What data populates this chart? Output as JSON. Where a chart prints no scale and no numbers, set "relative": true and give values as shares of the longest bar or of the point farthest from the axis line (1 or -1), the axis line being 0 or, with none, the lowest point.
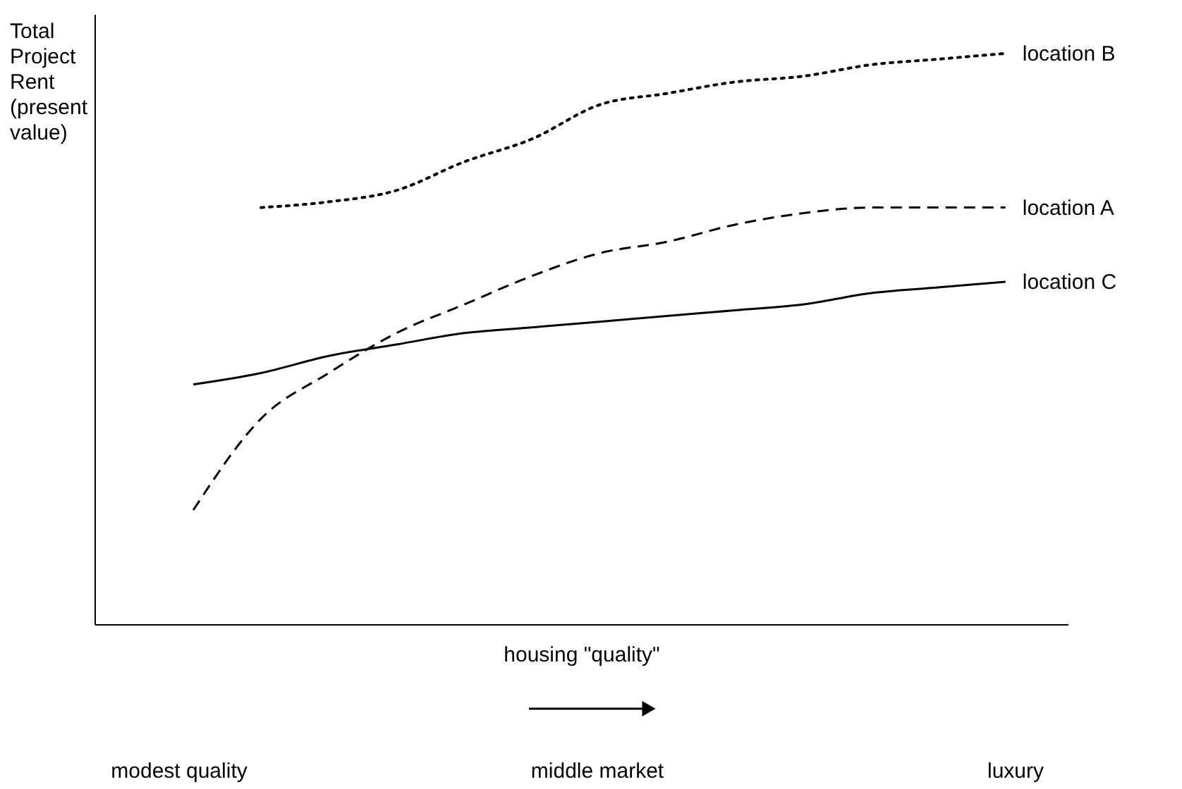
{
  "chart_data": {
    "type": "line",
    "relative": true,
    "xlabel": "housing \"quality\"",
    "ylabel": "Total Project Rent (present value)",
    "categories": [
      null,
      null,
      null,
      null,
      null,
      null,
      null,
      null,
      null,
      null,
      null,
      null,
      null
    ],
    "series": [
      {
        "name": "location B",
        "color": "#000000",
        "line_style": "dotted",
        "values": [
          null,
          0.73,
          0.74,
          0.76,
          0.81,
          0.85,
          0.91,
          0.93,
          0.95,
          0.96,
          0.98,
          0.99,
          1.0
        ]
      },
      {
        "name": "location A",
        "color": "#000000",
        "line_style": "dashed",
        "values": [
          0.2,
          0.36,
          0.44,
          0.51,
          0.56,
          0.61,
          0.65,
          0.67,
          0.7,
          0.72,
          0.73,
          0.73,
          0.73
        ]
      },
      {
        "name": "location C",
        "color": "#000000",
        "line_style": "solid",
        "values": [
          0.42,
          0.44,
          0.47,
          0.49,
          0.51,
          0.52,
          0.53,
          0.54,
          0.55,
          0.56,
          0.58,
          0.59,
          0.6
        ]
      }
    ],
    "annotations": [
      "modest quality",
      "middle market",
      "luxury"
    ],
    "marker": "none"
  }
}
